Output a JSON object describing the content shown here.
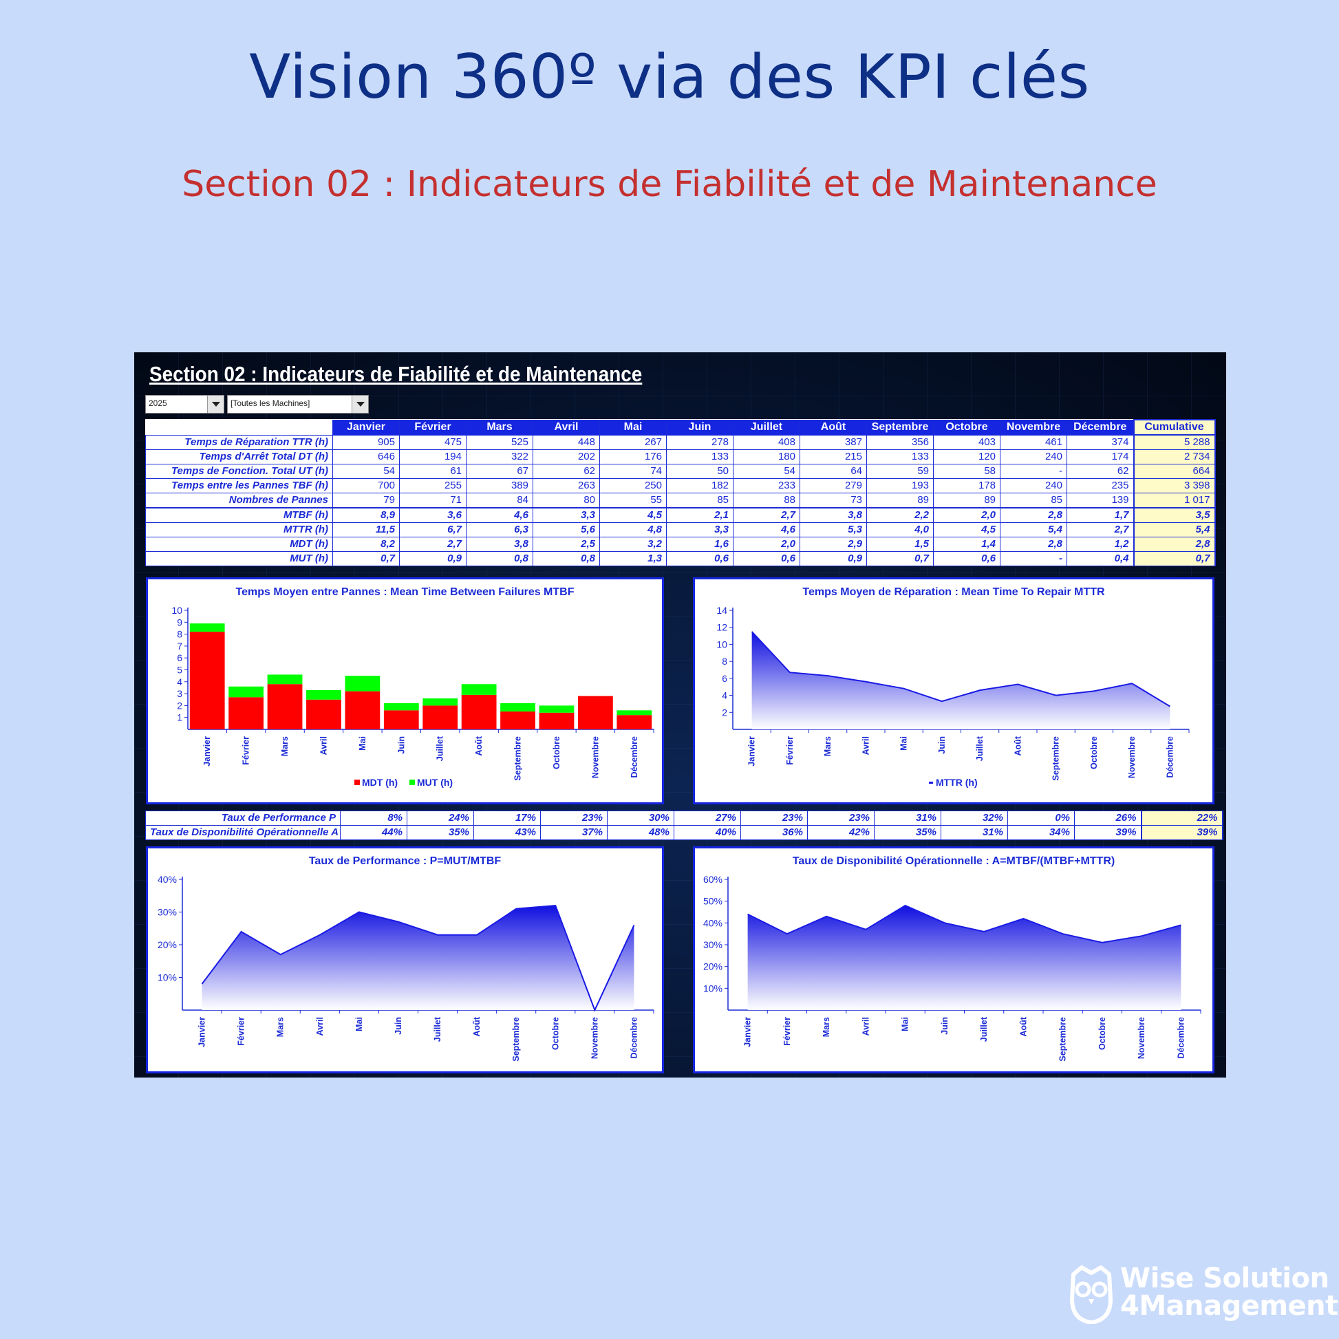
{
  "header": {
    "title": "Vision 360º via des KPI clés",
    "subtitle": "Section 02 : Indicateurs de Fiabilité et de Maintenance"
  },
  "sheet": {
    "title": "Section 02 : Indicateurs de Fiabilité et de Maintenance",
    "year_select": "2025",
    "machine_select": "[Toutes les Machines]"
  },
  "table": {
    "columns": [
      "Janvier",
      "Février",
      "Mars",
      "Avril",
      "Mai",
      "Juin",
      "Juillet",
      "Août",
      "Septembre",
      "Octobre",
      "Novembre",
      "Décembre",
      "Cumulative"
    ],
    "rows": [
      {
        "label": "Temps de Réparation TTR (h)",
        "values": [
          "905",
          "475",
          "525",
          "448",
          "267",
          "278",
          "408",
          "387",
          "356",
          "403",
          "461",
          "374",
          "5 288"
        ]
      },
      {
        "label": "Temps d'Arrêt Total DT (h)",
        "values": [
          "646",
          "194",
          "322",
          "202",
          "176",
          "133",
          "180",
          "215",
          "133",
          "120",
          "240",
          "174",
          "2 734"
        ]
      },
      {
        "label": "Temps de Fonction. Total UT (h)",
        "values": [
          "54",
          "61",
          "67",
          "62",
          "74",
          "50",
          "54",
          "64",
          "59",
          "58",
          "-",
          "62",
          "664"
        ]
      },
      {
        "label": "Temps entre les Pannes TBF (h)",
        "values": [
          "700",
          "255",
          "389",
          "263",
          "250",
          "182",
          "233",
          "279",
          "193",
          "178",
          "240",
          "235",
          "3 398"
        ]
      },
      {
        "label": "Nombres de Pannes",
        "values": [
          "79",
          "71",
          "84",
          "80",
          "55",
          "85",
          "88",
          "73",
          "89",
          "89",
          "85",
          "139",
          "1 017"
        ]
      },
      {
        "label": "MTBF (h)",
        "values": [
          "8,9",
          "3,6",
          "4,6",
          "3,3",
          "4,5",
          "2,1",
          "2,7",
          "3,8",
          "2,2",
          "2,0",
          "2,8",
          "1,7",
          "3,5"
        ]
      },
      {
        "label": "MTTR (h)",
        "values": [
          "11,5",
          "6,7",
          "6,3",
          "5,6",
          "4,8",
          "3,3",
          "4,6",
          "5,3",
          "4,0",
          "4,5",
          "5,4",
          "2,7",
          "5,4"
        ]
      },
      {
        "label": "MDT (h)",
        "values": [
          "8,2",
          "2,7",
          "3,8",
          "2,5",
          "3,2",
          "1,6",
          "2,0",
          "2,9",
          "1,5",
          "1,4",
          "2,8",
          "1,2",
          "2,8"
        ]
      },
      {
        "label": "MUT (h)",
        "values": [
          "0,7",
          "0,9",
          "0,8",
          "0,8",
          "1,3",
          "0,6",
          "0,6",
          "0,9",
          "0,7",
          "0,6",
          "-",
          "0,4",
          "0,7"
        ]
      }
    ]
  },
  "rate_table": {
    "rows": [
      {
        "label": "Taux de Performance P",
        "values": [
          "8%",
          "24%",
          "17%",
          "23%",
          "30%",
          "27%",
          "23%",
          "23%",
          "31%",
          "32%",
          "0%",
          "26%",
          "22%"
        ]
      },
      {
        "label": "Taux de Disponibilité Opérationnelle A",
        "values": [
          "44%",
          "35%",
          "43%",
          "37%",
          "48%",
          "40%",
          "36%",
          "42%",
          "35%",
          "31%",
          "34%",
          "39%",
          "39%"
        ]
      }
    ]
  },
  "chart_data": [
    {
      "type": "bar",
      "title": "Temps Moyen entre Pannes : Mean Time Between Failures MTBF",
      "categories": [
        "Janvier",
        "Février",
        "Mars",
        "Avril",
        "Mai",
        "Juin",
        "Juillet",
        "Août",
        "Septembre",
        "Octobre",
        "Novembre",
        "Décembre"
      ],
      "series": [
        {
          "name": "MDT (h)",
          "color": "#ff0000",
          "values": [
            8.2,
            2.7,
            3.8,
            2.5,
            3.2,
            1.6,
            2.0,
            2.9,
            1.5,
            1.4,
            2.8,
            1.2
          ]
        },
        {
          "name": "MUT (h)",
          "color": "#00ff00",
          "values": [
            0.7,
            0.9,
            0.8,
            0.8,
            1.3,
            0.6,
            0.6,
            0.9,
            0.7,
            0.6,
            0,
            0.4
          ]
        }
      ],
      "stacked": true,
      "ylim": [
        0,
        10
      ],
      "yticks": [
        "1",
        "2",
        "3",
        "4",
        "5",
        "6",
        "7",
        "8",
        "9",
        "10"
      ],
      "legend": "bottom"
    },
    {
      "type": "area",
      "title": "Temps Moyen de Réparation : Mean Time To Repair MTTR",
      "categories": [
        "Janvier",
        "Février",
        "Mars",
        "Avril",
        "Mai",
        "Juin",
        "Juillet",
        "Août",
        "Septembre",
        "Octobre",
        "Novembre",
        "Décembre"
      ],
      "series": [
        {
          "name": "MTTR (h)",
          "color": "#1a1ae6",
          "values": [
            11.5,
            6.7,
            6.3,
            5.6,
            4.8,
            3.3,
            4.6,
            5.3,
            4.0,
            4.5,
            5.4,
            2.7
          ]
        }
      ],
      "ylim": [
        0,
        14
      ],
      "yticks": [
        "2",
        "4",
        "6",
        "8",
        "10",
        "12",
        "14"
      ],
      "legend": "bottom"
    },
    {
      "type": "area",
      "title": "Taux de Performance : P=MUT/MTBF",
      "categories": [
        "Janvier",
        "Février",
        "Mars",
        "Avril",
        "Mai",
        "Juin",
        "Juillet",
        "Août",
        "Septembre",
        "Octobre",
        "Novembre",
        "Décembre"
      ],
      "series": [
        {
          "color": "#1a1ae6",
          "values": [
            8,
            24,
            17,
            23,
            30,
            27,
            23,
            23,
            31,
            32,
            0,
            26
          ]
        }
      ],
      "ylim": [
        0,
        40
      ],
      "yticks": [
        "10%",
        "20%",
        "30%",
        "40%"
      ]
    },
    {
      "type": "area",
      "title": "Taux de Disponibilité Opérationnelle : A=MTBF/(MTBF+MTTR)",
      "categories": [
        "Janvier",
        "Février",
        "Mars",
        "Avril",
        "Mai",
        "Juin",
        "Juillet",
        "Août",
        "Septembre",
        "Octobre",
        "Novembre",
        "Décembre"
      ],
      "series": [
        {
          "color": "#1a1ae6",
          "values": [
            44,
            35,
            43,
            37,
            48,
            40,
            36,
            42,
            35,
            31,
            34,
            39
          ]
        }
      ],
      "ylim": [
        0,
        60
      ],
      "yticks": [
        "10%",
        "20%",
        "30%",
        "40%",
        "50%",
        "60%"
      ]
    }
  ],
  "brand": {
    "line1": "Wise Solution",
    "line2": "4Management",
    "icon": "owl-icon"
  },
  "colors": {
    "title": "#0e2f86",
    "subtitle": "#c4302f",
    "header_fill": "#1525e0",
    "cumulative_fill": "#fffbc8",
    "chart_blue": "#1a1ae6"
  }
}
